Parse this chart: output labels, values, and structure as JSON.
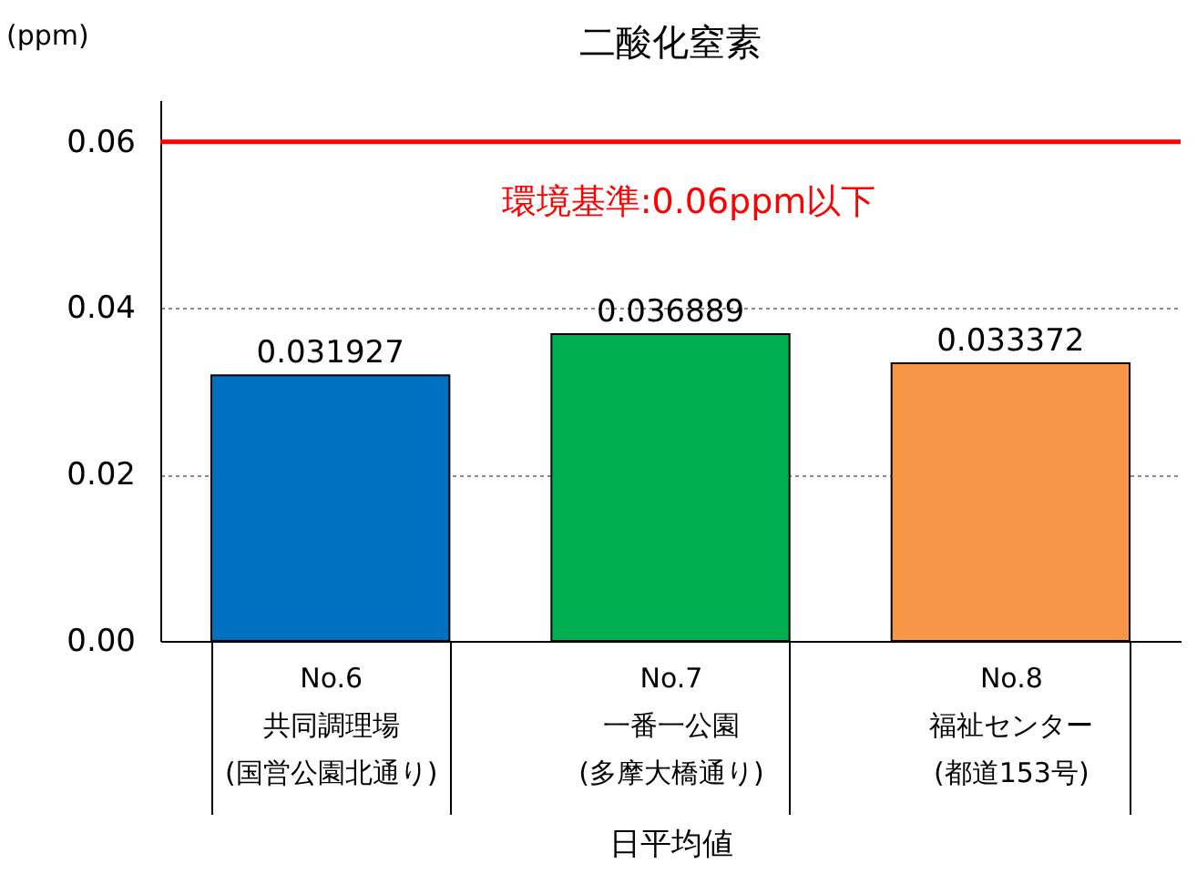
{
  "chart_data": {
    "type": "bar",
    "title": "二酸化窒素",
    "ylabel": "(ppm)",
    "xlabel": "日平均値",
    "categories": [
      "No.6\n共同調理場\n(国営公園北通り)",
      "No.7\n一番一公園\n(多摩大橋通り)",
      "No.8\n福祉センター\n(都道153号)"
    ],
    "values": [
      0.031927,
      0.036889,
      0.033372
    ],
    "colors": [
      "#0070c0",
      "#00b050",
      "#f79646"
    ],
    "ylim": [
      0,
      0.065
    ],
    "yticks": [
      {
        "value": 0,
        "label": "0.00"
      },
      {
        "value": 0.02,
        "label": "0.02"
      },
      {
        "value": 0.04,
        "label": "0.04"
      },
      {
        "value": 0.06,
        "label": "0.06"
      }
    ],
    "grid": "y",
    "data_labels": true,
    "ref_lines": [
      {
        "axis": "y",
        "value": 0.06,
        "label": "環境基準:0.06ppm以下",
        "color": "#ff0000"
      }
    ]
  }
}
